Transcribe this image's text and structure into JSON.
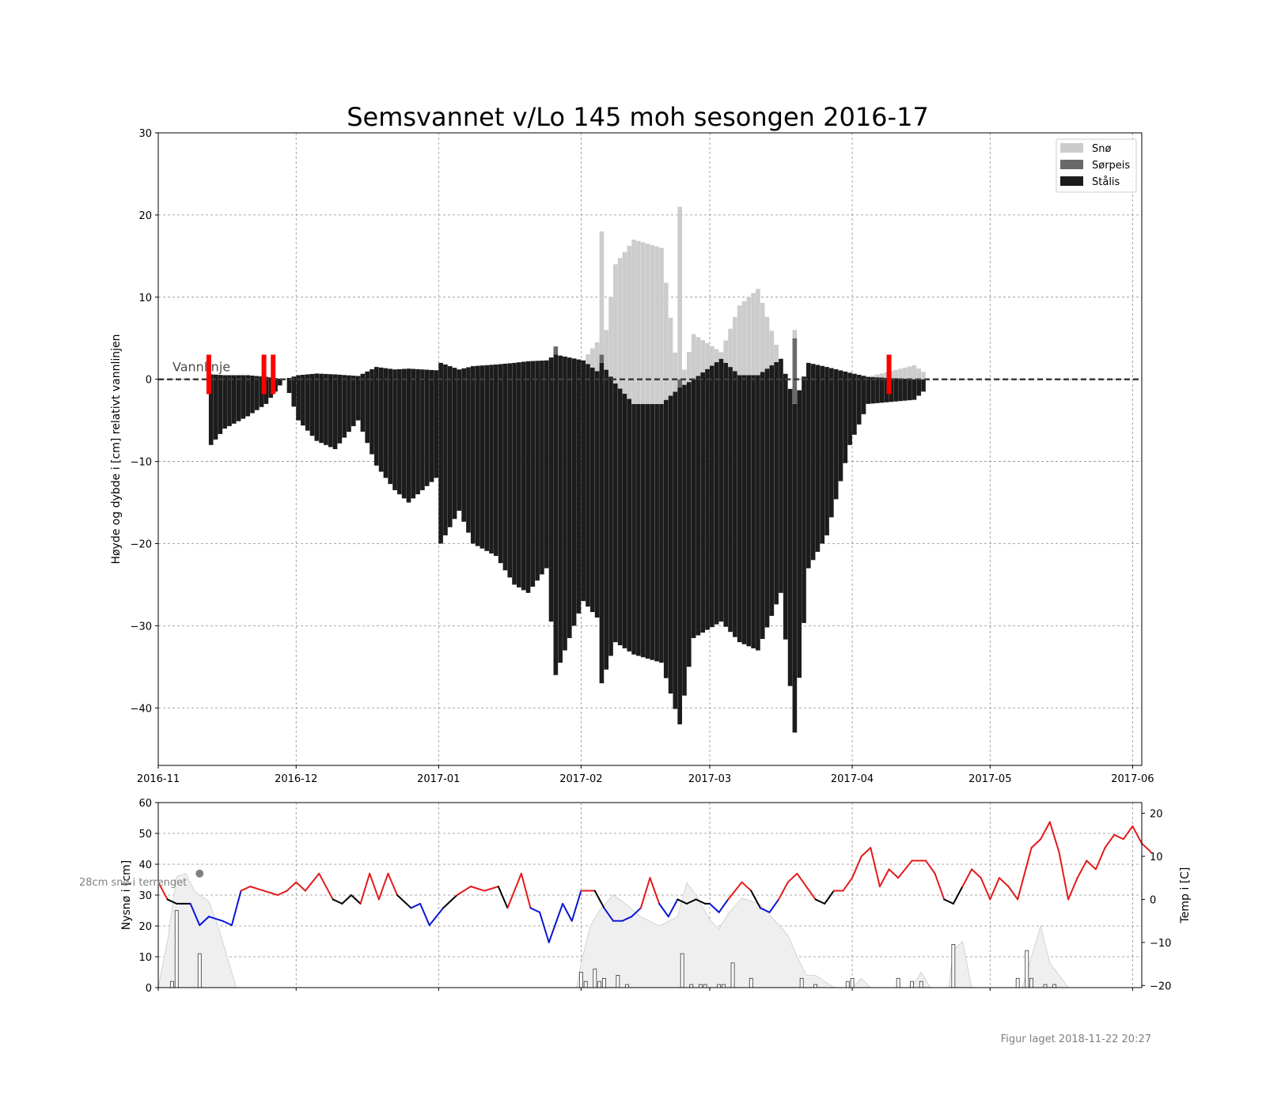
{
  "title": "Semsvannet v/Lo 145 moh sesongen 2016-17",
  "footer": "Figur laget 2018-11-22 20:27",
  "colors": {
    "snow": "#cccccc",
    "slush": "#696969",
    "ice": "#1c1c1c",
    "marker": "#ff0000",
    "temp_warm": "#e31a1c",
    "temp_cold": "#0a14d6",
    "temp_zero": "#000000",
    "snow_area": "#efefef"
  },
  "chart_data": [
    {
      "type": "bar",
      "name": "ice-thickness",
      "ylabel": "Høyde og dybde i [cm] relativt vannlinjen",
      "ylim": [
        -47,
        30
      ],
      "yticks": [
        -40,
        -30,
        -20,
        -10,
        0,
        10,
        20,
        30
      ],
      "ytick_labels": [
        "−40",
        "−30",
        "−20",
        "−10",
        "0",
        "10",
        "20",
        "30"
      ],
      "xlim": [
        "2016-11-01",
        "2017-06-03"
      ],
      "xticks": [
        "2016-11-01",
        "2016-12-01",
        "2017-01-01",
        "2017-02-01",
        "2017-03-01",
        "2017-04-01",
        "2017-05-01",
        "2017-06-01"
      ],
      "xtick_labels": [
        "2016-11",
        "2016-12",
        "2017-01",
        "2017-02",
        "2017-03",
        "2017-04",
        "2017-05",
        "2017-06"
      ],
      "grid": true,
      "legend": {
        "position": "top-right",
        "entries": [
          "Snø",
          "Sørpeis",
          "Stålis"
        ]
      },
      "waterline_label": "Vannlinje",
      "key_days": [
        {
          "date": "2016-11-12",
          "ice_bottom": -8,
          "ice_top": 0.6
        },
        {
          "date": "2016-11-15",
          "ice_bottom": -6,
          "ice_top": 0.5
        },
        {
          "date": "2016-11-20",
          "ice_bottom": -4.5,
          "ice_top": 0.5
        },
        {
          "date": "2016-11-24",
          "ice_bottom": -3,
          "ice_top": 0.3
        },
        {
          "date": "2016-11-28",
          "ice_bottom": 0,
          "ice_top": 0
        },
        {
          "date": "2016-12-01",
          "ice_bottom": -5,
          "ice_top": 0.5
        },
        {
          "date": "2016-12-05",
          "ice_bottom": -7.5,
          "ice_top": 0.7
        },
        {
          "date": "2016-12-09",
          "ice_bottom": -8.5,
          "ice_top": 0.6
        },
        {
          "date": "2016-12-14",
          "ice_bottom": -5,
          "ice_top": 0.4
        },
        {
          "date": "2016-12-18",
          "ice_bottom": -10.5,
          "ice_top": 1.5
        },
        {
          "date": "2016-12-22",
          "ice_bottom": -13.5,
          "ice_top": 1.2
        },
        {
          "date": "2016-12-25",
          "ice_bottom": -15,
          "ice_top": 1.3
        },
        {
          "date": "2016-12-31",
          "ice_bottom": -12,
          "ice_top": 1.1
        },
        {
          "date": "2017-01-01",
          "ice_bottom": -20,
          "ice_top": 2
        },
        {
          "date": "2017-01-05",
          "ice_bottom": -16,
          "ice_top": 1.2
        },
        {
          "date": "2017-01-08",
          "ice_bottom": -20,
          "ice_top": 1.6
        },
        {
          "date": "2017-01-13",
          "ice_bottom": -21.5,
          "ice_top": 1.8
        },
        {
          "date": "2017-01-17",
          "ice_bottom": -25,
          "ice_top": 2
        },
        {
          "date": "2017-01-20",
          "ice_bottom": -26,
          "ice_top": 2.2
        },
        {
          "date": "2017-01-24",
          "ice_bottom": -23,
          "ice_top": 2.3
        },
        {
          "date": "2017-01-26",
          "ice_bottom": -36,
          "ice_top": 3,
          "slush": 1,
          "snow": 0
        },
        {
          "date": "2017-02-01",
          "ice_bottom": -27,
          "ice_top": 2.3
        },
        {
          "date": "2017-02-04",
          "ice_bottom": -29,
          "ice_top": 1,
          "snow": 3.5
        },
        {
          "date": "2017-02-05",
          "ice_bottom": -37,
          "ice_top": 2,
          "slush": 1,
          "snow": 15
        },
        {
          "date": "2017-02-08",
          "ice_bottom": -32,
          "ice_top": -0.5,
          "snow": 14.5
        },
        {
          "date": "2017-02-12",
          "ice_bottom": -33.5,
          "ice_top": -3,
          "snow": 20
        },
        {
          "date": "2017-02-18",
          "ice_bottom": -34.5,
          "ice_top": -3,
          "snow": 19
        },
        {
          "date": "2017-02-22",
          "ice_bottom": -42,
          "ice_top": -1,
          "slush": 1,
          "snow": 21
        },
        {
          "date": "2017-02-25",
          "ice_bottom": -31.5,
          "ice_top": 0,
          "snow": 5.5
        },
        {
          "date": "2017-03-03",
          "ice_bottom": -29.5,
          "ice_top": 2.5,
          "snow": 0.8
        },
        {
          "date": "2017-03-07",
          "ice_bottom": -32,
          "ice_top": 0.5,
          "snow": 8.5
        },
        {
          "date": "2017-03-11",
          "ice_bottom": -33,
          "ice_top": 0.5,
          "snow": 10.5
        },
        {
          "date": "2017-03-16",
          "ice_bottom": -26,
          "ice_top": 2.5
        },
        {
          "date": "2017-03-19",
          "ice_bottom": -43,
          "ice_top": -3,
          "slush": 8,
          "snow": 1
        },
        {
          "date": "2017-03-22",
          "ice_bottom": -23,
          "ice_top": 2
        },
        {
          "date": "2017-03-26",
          "ice_bottom": -19,
          "ice_top": 1.5
        },
        {
          "date": "2017-03-31",
          "ice_bottom": -8,
          "ice_top": 0.8
        },
        {
          "date": "2017-04-04",
          "ice_bottom": -3,
          "ice_top": 0.3
        },
        {
          "date": "2017-04-14",
          "ice_bottom": -2.5,
          "ice_top": 0,
          "snow": 1.7
        },
        {
          "date": "2017-04-17",
          "ice_bottom": -1,
          "ice_top": 0,
          "snow": 0.5
        }
      ],
      "single_measurements": [
        "2016-11-18",
        "2016-12-04",
        "2016-12-19",
        "2016-12-25",
        "2016-12-28",
        "2017-01-01",
        "2017-01-26",
        "2017-02-05",
        "2017-02-22",
        "2017-03-19"
      ],
      "red_markers": [
        "2016-11-12",
        "2016-11-24",
        "2016-11-26",
        "2017-04-09"
      ]
    },
    {
      "type": "line",
      "name": "weather",
      "ylabel": "Nysnø i [cm]",
      "y2label": "Temp i [C]",
      "ylim": [
        0,
        60
      ],
      "yticks": [
        0,
        10,
        20,
        30,
        40,
        50,
        60
      ],
      "y2lim": [
        -20.5,
        22.5
      ],
      "y2ticks": [
        -20,
        -10,
        0,
        10,
        20
      ],
      "y2tick_labels": [
        "−20",
        "−10",
        "0",
        "10",
        "20"
      ],
      "annotation": "28cm snø i terrenget",
      "annotation_point": {
        "date": "2016-11-10",
        "value": 37
      },
      "temperature": [
        [
          "2016-11-01",
          4
        ],
        [
          "2016-11-03",
          0
        ],
        [
          "2016-11-05",
          -1
        ],
        [
          "2016-11-08",
          -1
        ],
        [
          "2016-11-10",
          -6
        ],
        [
          "2016-11-12",
          -4
        ],
        [
          "2016-11-15",
          -5
        ],
        [
          "2016-11-17",
          -6
        ],
        [
          "2016-11-19",
          2
        ],
        [
          "2016-11-21",
          3
        ],
        [
          "2016-11-24",
          2
        ],
        [
          "2016-11-27",
          1
        ],
        [
          "2016-11-29",
          2
        ],
        [
          "2016-12-01",
          4
        ],
        [
          "2016-12-03",
          2
        ],
        [
          "2016-12-06",
          6
        ],
        [
          "2016-12-09",
          0
        ],
        [
          "2016-12-11",
          -1
        ],
        [
          "2016-12-13",
          1
        ],
        [
          "2016-12-15",
          -1
        ],
        [
          "2016-12-17",
          6
        ],
        [
          "2016-12-19",
          0
        ],
        [
          "2016-12-21",
          6
        ],
        [
          "2016-12-23",
          1
        ],
        [
          "2016-12-26",
          -2
        ],
        [
          "2016-12-28",
          -1
        ],
        [
          "2016-12-30",
          -6
        ],
        [
          "2017-01-02",
          -2
        ],
        [
          "2017-01-05",
          1
        ],
        [
          "2017-01-08",
          3
        ],
        [
          "2017-01-11",
          2
        ],
        [
          "2017-01-14",
          3
        ],
        [
          "2017-01-16",
          -2
        ],
        [
          "2017-01-19",
          6
        ],
        [
          "2017-01-21",
          -2
        ],
        [
          "2017-01-23",
          -3
        ],
        [
          "2017-01-25",
          -10
        ],
        [
          "2017-01-28",
          -1
        ],
        [
          "2017-01-30",
          -5
        ],
        [
          "2017-02-01",
          2
        ],
        [
          "2017-02-04",
          2
        ],
        [
          "2017-02-06",
          -2
        ],
        [
          "2017-02-08",
          -5
        ],
        [
          "2017-02-10",
          -5
        ],
        [
          "2017-02-12",
          -4
        ],
        [
          "2017-02-14",
          -2
        ],
        [
          "2017-02-16",
          5
        ],
        [
          "2017-02-18",
          -1
        ],
        [
          "2017-02-20",
          -4
        ],
        [
          "2017-02-22",
          0
        ],
        [
          "2017-02-24",
          -1
        ],
        [
          "2017-02-26",
          0
        ],
        [
          "2017-02-28",
          -1
        ],
        [
          "2017-03-01",
          -1
        ],
        [
          "2017-03-03",
          -3
        ],
        [
          "2017-03-05",
          0
        ],
        [
          "2017-03-08",
          4
        ],
        [
          "2017-03-10",
          2
        ],
        [
          "2017-03-12",
          -2
        ],
        [
          "2017-03-14",
          -3
        ],
        [
          "2017-03-16",
          0
        ],
        [
          "2017-03-18",
          4
        ],
        [
          "2017-03-20",
          6
        ],
        [
          "2017-03-22",
          3
        ],
        [
          "2017-03-24",
          0
        ],
        [
          "2017-03-26",
          -1
        ],
        [
          "2017-03-28",
          2
        ],
        [
          "2017-03-30",
          2
        ],
        [
          "2017-04-01",
          5
        ],
        [
          "2017-04-03",
          10
        ],
        [
          "2017-04-05",
          12
        ],
        [
          "2017-04-07",
          3
        ],
        [
          "2017-04-09",
          7
        ],
        [
          "2017-04-11",
          5
        ],
        [
          "2017-04-14",
          9
        ],
        [
          "2017-04-17",
          9
        ],
        [
          "2017-04-19",
          6
        ],
        [
          "2017-04-21",
          0
        ],
        [
          "2017-04-23",
          -1
        ],
        [
          "2017-04-25",
          3
        ],
        [
          "2017-04-27",
          7
        ],
        [
          "2017-04-29",
          5
        ],
        [
          "2017-05-01",
          0
        ],
        [
          "2017-05-03",
          5
        ],
        [
          "2017-05-05",
          3
        ],
        [
          "2017-05-07",
          0
        ],
        [
          "2017-05-10",
          12
        ],
        [
          "2017-05-12",
          14
        ],
        [
          "2017-05-14",
          18
        ],
        [
          "2017-05-16",
          11
        ],
        [
          "2017-05-18",
          0
        ],
        [
          "2017-05-20",
          5
        ],
        [
          "2017-05-22",
          9
        ],
        [
          "2017-05-24",
          7
        ],
        [
          "2017-05-26",
          12
        ],
        [
          "2017-05-28",
          15
        ],
        [
          "2017-05-30",
          14
        ],
        [
          "2017-06-01",
          17
        ],
        [
          "2017-06-03",
          13
        ],
        [
          "2017-06-05",
          11
        ]
      ],
      "snow_depth_area": [
        [
          "2016-11-01",
          0
        ],
        [
          "2016-11-03",
          15
        ],
        [
          "2016-11-05",
          36
        ],
        [
          "2016-11-07",
          37
        ],
        [
          "2016-11-09",
          31
        ],
        [
          "2016-11-12",
          28
        ],
        [
          "2016-11-14",
          20
        ],
        [
          "2016-11-16",
          10
        ],
        [
          "2016-11-18",
          0
        ],
        [
          "2017-01-31",
          0
        ],
        [
          "2017-02-01",
          8
        ],
        [
          "2017-02-03",
          20
        ],
        [
          "2017-02-05",
          25
        ],
        [
          "2017-02-08",
          30
        ],
        [
          "2017-02-10",
          28
        ],
        [
          "2017-02-14",
          23
        ],
        [
          "2017-02-18",
          20
        ],
        [
          "2017-02-22",
          23
        ],
        [
          "2017-02-24",
          34
        ],
        [
          "2017-02-26",
          30
        ],
        [
          "2017-03-01",
          22
        ],
        [
          "2017-03-03",
          19
        ],
        [
          "2017-03-05",
          24
        ],
        [
          "2017-03-08",
          29
        ],
        [
          "2017-03-12",
          27
        ],
        [
          "2017-03-15",
          22
        ],
        [
          "2017-03-18",
          17
        ],
        [
          "2017-03-20",
          10
        ],
        [
          "2017-03-22",
          4
        ],
        [
          "2017-03-24",
          4
        ],
        [
          "2017-03-26",
          2
        ],
        [
          "2017-03-28",
          0
        ],
        [
          "2017-04-01",
          0
        ],
        [
          "2017-04-03",
          3
        ],
        [
          "2017-04-05",
          0
        ],
        [
          "2017-04-14",
          0
        ],
        [
          "2017-04-16",
          5
        ],
        [
          "2017-04-18",
          0
        ],
        [
          "2017-04-22",
          0
        ],
        [
          "2017-04-23",
          12
        ],
        [
          "2017-04-25",
          15
        ],
        [
          "2017-04-27",
          0
        ],
        [
          "2017-05-08",
          0
        ],
        [
          "2017-05-10",
          10
        ],
        [
          "2017-05-12",
          20
        ],
        [
          "2017-05-14",
          8
        ],
        [
          "2017-05-16",
          4
        ],
        [
          "2017-05-18",
          0
        ]
      ],
      "new_snow_bars": [
        [
          "2016-11-04",
          2
        ],
        [
          "2016-11-05",
          25
        ],
        [
          "2016-11-10",
          11
        ],
        [
          "2017-02-01",
          5
        ],
        [
          "2017-02-02",
          2
        ],
        [
          "2017-02-04",
          6
        ],
        [
          "2017-02-05",
          2
        ],
        [
          "2017-02-06",
          3
        ],
        [
          "2017-02-09",
          4
        ],
        [
          "2017-02-11",
          1
        ],
        [
          "2017-02-23",
          11
        ],
        [
          "2017-02-25",
          1
        ],
        [
          "2017-02-27",
          1
        ],
        [
          "2017-02-28",
          1
        ],
        [
          "2017-03-03",
          1
        ],
        [
          "2017-03-04",
          1
        ],
        [
          "2017-03-06",
          8
        ],
        [
          "2017-03-10",
          3
        ],
        [
          "2017-03-21",
          3
        ],
        [
          "2017-03-24",
          1
        ],
        [
          "2017-03-31",
          2
        ],
        [
          "2017-04-01",
          3
        ],
        [
          "2017-04-11",
          3
        ],
        [
          "2017-04-14",
          2
        ],
        [
          "2017-04-16",
          2
        ],
        [
          "2017-04-23",
          14
        ],
        [
          "2017-05-07",
          3
        ],
        [
          "2017-05-09",
          12
        ],
        [
          "2017-05-10",
          3
        ],
        [
          "2017-05-13",
          1
        ],
        [
          "2017-05-15",
          1
        ]
      ]
    }
  ]
}
